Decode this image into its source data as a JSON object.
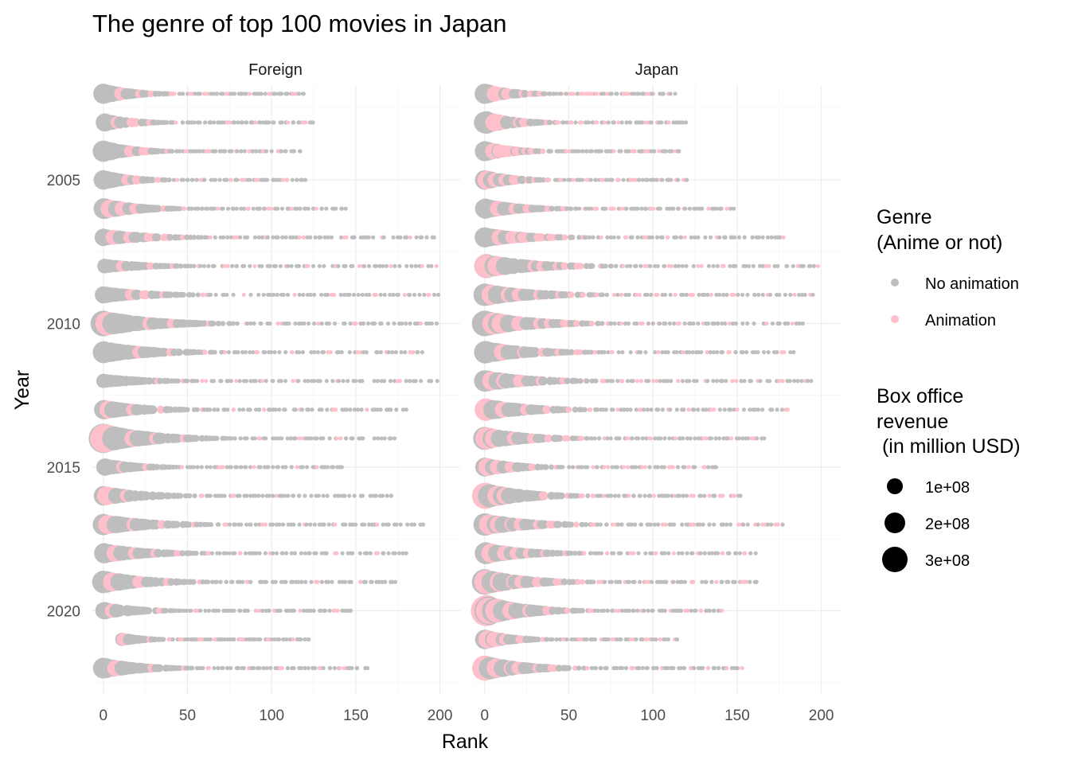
{
  "chart_data": {
    "type": "scatter",
    "title": "The genre of top 100 movies in Japan",
    "xlabel": "Rank",
    "ylabel": "Year",
    "xlim": [
      -7,
      212
    ],
    "ylim": [
      2001.7,
      2022.9
    ],
    "x_ticks": [
      0,
      50,
      100,
      150,
      200
    ],
    "y_ticks": [
      2005,
      2010,
      2015,
      2020
    ],
    "y_reversed": true,
    "grid": true,
    "legend_placement": "right",
    "legend_color": {
      "title_line1": "Genre",
      "title_line2": "(Anime or not)",
      "items": [
        {
          "label": "No animation",
          "color": "#bebebe"
        },
        {
          "label": "Animation",
          "color": "#ffc0cb"
        }
      ]
    },
    "legend_size": {
      "title_line1": "Box office",
      "title_line2": "revenue",
      "title_line3": " (in million USD)",
      "items": [
        {
          "label": "1e+08",
          "value": 100000000
        },
        {
          "label": "2e+08",
          "value": 200000000
        },
        {
          "label": "3e+08",
          "value": 300000000
        }
      ]
    },
    "panels": [
      {
        "label": "Foreign",
        "rows": [
          {
            "year": 2002,
            "max_rank": 119,
            "anime_ranks": [
              11,
              22,
              29,
              41,
              52,
              61,
              73,
              88,
              98,
              114
            ],
            "top_revenue": 160000000
          },
          {
            "year": 2003,
            "max_rank": 125,
            "anime_ranks": [
              8,
              18,
              27,
              44,
              59,
              74,
              91,
              111,
              119
            ],
            "top_revenue": 130000000
          },
          {
            "year": 2004,
            "max_rank": 118,
            "anime_ranks": [
              17,
              23,
              26,
              38,
              50,
              62,
              78,
              87,
              95,
              104
            ],
            "top_revenue": 180000000
          },
          {
            "year": 2005,
            "max_rank": 120,
            "anime_ranks": [
              15,
              21,
              33,
              45,
              58,
              76,
              83,
              92,
              108
            ],
            "top_revenue": 150000000
          },
          {
            "year": 2006,
            "max_rank": 144,
            "anime_ranks": [
              5,
              12,
              19,
              36,
              49,
              68,
              86,
              99,
              112,
              128
            ],
            "top_revenue": 170000000
          },
          {
            "year": 2007,
            "max_rank": 197,
            "anime_ranks": [
              7,
              15,
              28,
              37,
              47,
              64,
              79,
              96,
              118,
              143,
              165,
              182
            ],
            "top_revenue": 120000000
          },
          {
            "year": 2008,
            "max_rank": 199,
            "anime_ranks": [
              12,
              28,
              41,
              56,
              73,
              91,
              108,
              122,
              138,
              153,
              171,
              190,
              197
            ],
            "top_revenue": 85000000
          },
          {
            "year": 2009,
            "max_rank": 199,
            "anime_ranks": [
              16,
              25,
              35,
              60,
              82,
              114,
              136,
              161,
              178,
              193
            ],
            "top_revenue": 115000000
          },
          {
            "year": 2010,
            "max_rank": 198,
            "anime_ranks": [
              3,
              26,
              41,
              62,
              84,
              105,
              128,
              149,
              171,
              189
            ],
            "top_revenue": 260000000
          },
          {
            "year": 2011,
            "max_rank": 190,
            "anime_ranks": [
              21,
              40,
              61,
              73,
              92,
              112,
              134,
              152,
              167,
              183
            ],
            "top_revenue": 190000000
          },
          {
            "year": 2012,
            "max_rank": 200,
            "anime_ranks": [
              32,
              47,
              60,
              78,
              95,
              114,
              138,
              158,
              176,
              192
            ],
            "top_revenue": 80000000
          },
          {
            "year": 2013,
            "max_rank": 180,
            "anime_ranks": [
              2,
              18,
              33,
              58,
              78,
              96,
              116,
              138,
              157
            ],
            "top_revenue": 150000000
          },
          {
            "year": 2014,
            "max_rank": 173,
            "anime_ranks": [
              2,
              4,
              18,
              31,
              48,
              69,
              92,
              118,
              140
            ],
            "top_revenue": 340000000
          },
          {
            "year": 2015,
            "max_rank": 144,
            "anime_ranks": [
              11,
              25,
              48,
              70,
              90,
              115,
              128
            ],
            "top_revenue": 120000000
          },
          {
            "year": 2016,
            "max_rank": 172,
            "anime_ranks": [
              2,
              6,
              14,
              27,
              59,
              78,
              103,
              118,
              136
            ],
            "top_revenue": 150000000
          },
          {
            "year": 2017,
            "max_rank": 190,
            "anime_ranks": [
              4,
              17,
              34,
              53,
              72,
              95,
              119,
              139,
              163
            ],
            "top_revenue": 180000000
          },
          {
            "year": 2018,
            "max_rank": 180,
            "anime_ranks": [
              7,
              19,
              31,
              44,
              62,
              82,
              98,
              116,
              138,
              162
            ],
            "top_revenue": 160000000
          },
          {
            "year": 2019,
            "max_rank": 174,
            "anime_ranks": [
              6,
              21,
              38,
              57,
              86,
              104,
              127,
              152
            ],
            "top_revenue": 200000000
          },
          {
            "year": 2020,
            "max_rank": 148,
            "anime_ranks": [
              5,
              34,
              56,
              92,
              101,
              116,
              138
            ],
            "top_revenue": 120000000
          },
          {
            "year": 2021,
            "min_rank": 11,
            "max_rank": 122,
            "anime_ranks": [
              13,
              27,
              39,
              46,
              58,
              67,
              82,
              98,
              113
            ],
            "top_revenue": 70000000
          },
          {
            "year": 2022,
            "max_rank": 157,
            "anime_ranks": [
              8,
              29,
              47,
              63,
              86,
              106,
              128,
              142
            ],
            "top_revenue": 170000000
          }
        ]
      },
      {
        "label": "Japan",
        "rows": [
          {
            "year": 2002,
            "max_rank": 115,
            "anime_ranks": [
              6,
              10,
              14,
              22,
              27,
              33,
              47,
              52,
              58,
              60,
              64,
              68,
              73,
              84,
              97,
              101,
              108
            ],
            "top_revenue": 160000000
          },
          {
            "year": 2003,
            "max_rank": 120,
            "anime_ranks": [
              7,
              11,
              15,
              19,
              24,
              36,
              44,
              51,
              58,
              67,
              72,
              80,
              88,
              96,
              101,
              110
            ],
            "top_revenue": 200000000
          },
          {
            "year": 2004,
            "max_rank": 116,
            "anime_ranks": [
              6,
              10,
              15,
              20,
              24,
              28,
              36,
              41,
              49,
              78,
              89,
              97,
              104,
              113,
              117
            ],
            "top_revenue": 160000000
          },
          {
            "year": 2005,
            "max_rank": 120,
            "anime_ranks": [
              2,
              7,
              12,
              18,
              25,
              29,
              37,
              45,
              53,
              61,
              70,
              80,
              88,
              104,
              113,
              118
            ],
            "top_revenue": 150000000
          },
          {
            "year": 2006,
            "max_rank": 148,
            "anime_ranks": [
              9,
              18,
              26,
              37,
              47,
              58,
              66,
              76,
              82,
              100,
              117,
              132,
              144
            ],
            "top_revenue": 160000000
          },
          {
            "year": 2007,
            "max_rank": 178,
            "anime_ranks": [
              9,
              17,
              24,
              33,
              40,
              48,
              58,
              70,
              85,
              96,
              108,
              120,
              138,
              157,
              178
            ],
            "top_revenue": 160000000
          },
          {
            "year": 2008,
            "max_rank": 199,
            "anime_ranks": [
              0,
              4,
              8,
              19,
              29,
              35,
              43,
              49,
              56,
              68,
              83,
              96,
              110,
              128,
              141,
              168,
              186,
              199
            ],
            "top_revenue": 230000000
          },
          {
            "year": 2009,
            "max_rank": 195,
            "anime_ranks": [
              5,
              14,
              21,
              32,
              44,
              52,
              59,
              67,
              76,
              82,
              91,
              102,
              112,
              123,
              136,
              148,
              167,
              185,
              192
            ],
            "top_revenue": 200000000
          },
          {
            "year": 2010,
            "max_rank": 189,
            "anime_ranks": [
              6,
              11,
              20,
              31,
              38,
              48,
              55,
              64,
              72,
              82,
              93,
              102,
              115,
              129,
              145,
              168,
              182
            ],
            "top_revenue": 260000000
          },
          {
            "year": 2011,
            "max_rank": 184,
            "anime_ranks": [
              11,
              22,
              33,
              44,
              56,
              66,
              76,
              90,
              104,
              118,
              131,
              146,
              164,
              178
            ],
            "top_revenue": 200000000
          },
          {
            "year": 2012,
            "max_rank": 195,
            "anime_ranks": [
              4,
              11,
              22,
              33,
              47,
              59,
              71,
              82,
              92,
              101,
              116,
              130,
              148,
              162,
              176,
              190
            ],
            "top_revenue": 180000000
          },
          {
            "year": 2013,
            "max_rank": 180,
            "anime_ranks": [
              0,
              2,
              12,
              25,
              38,
              51,
              63,
              78,
              93,
              108,
              121,
              136,
              150,
              168,
              180
            ],
            "top_revenue": 200000000
          },
          {
            "year": 2014,
            "max_rank": 166,
            "anime_ranks": [
              2,
              6,
              18,
              28,
              37,
              48,
              58,
              71,
              86,
              99,
              114,
              131,
              146,
              160
            ],
            "top_revenue": 210000000
          },
          {
            "year": 2015,
            "max_rank": 138,
            "anime_ranks": [
              3,
              8,
              16,
              29,
              42,
              54,
              63,
              72,
              84,
              95,
              111,
              122,
              130
            ],
            "top_revenue": 140000000
          },
          {
            "year": 2016,
            "max_rank": 153,
            "anime_ranks": [
              0,
              1,
              8,
              13,
              23,
              36,
              48,
              57,
              64,
              71,
              86,
              100,
              113,
              124,
              133,
              141,
              148
            ],
            "top_revenue": 270000000
          },
          {
            "year": 2017,
            "max_rank": 177,
            "anime_ranks": [
              4,
              9,
              15,
              22,
              31,
              40,
              53,
              65,
              77,
              91,
              107,
              123,
              138,
              152,
              160,
              166,
              173
            ],
            "top_revenue": 200000000
          },
          {
            "year": 2018,
            "max_rank": 161,
            "anime_ranks": [
              5,
              13,
              18,
              26,
              35,
              48,
              60,
              74,
              87,
              101,
              113,
              126,
              141,
              155
            ],
            "top_revenue": 190000000
          },
          {
            "year": 2019,
            "max_rank": 162,
            "anime_ranks": [
              2,
              8,
              16,
              23,
              32,
              44,
              57,
              69,
              82,
              97,
              110,
              124,
              137,
              154
            ],
            "top_revenue": 260000000
          },
          {
            "year": 2020,
            "max_rank": 142,
            "anime_ranks": [
              0,
              4,
              8,
              17,
              26,
              38,
              50,
              63,
              79,
              93,
              109,
              120,
              129,
              142
            ],
            "top_revenue": 380000000
          },
          {
            "year": 2021,
            "max_rank": 116,
            "anime_ranks": [
              3,
              7,
              12,
              22,
              35,
              47,
              57,
              68,
              77,
              88,
              97,
              105,
              112
            ],
            "top_revenue": 150000000
          },
          {
            "year": 2022,
            "max_rank": 153,
            "anime_ranks": [
              1,
              8,
              15,
              21,
              31,
              40,
              54,
              62,
              87,
              104,
              122,
              132,
              145,
              152
            ],
            "top_revenue": 250000000
          }
        ]
      }
    ]
  }
}
